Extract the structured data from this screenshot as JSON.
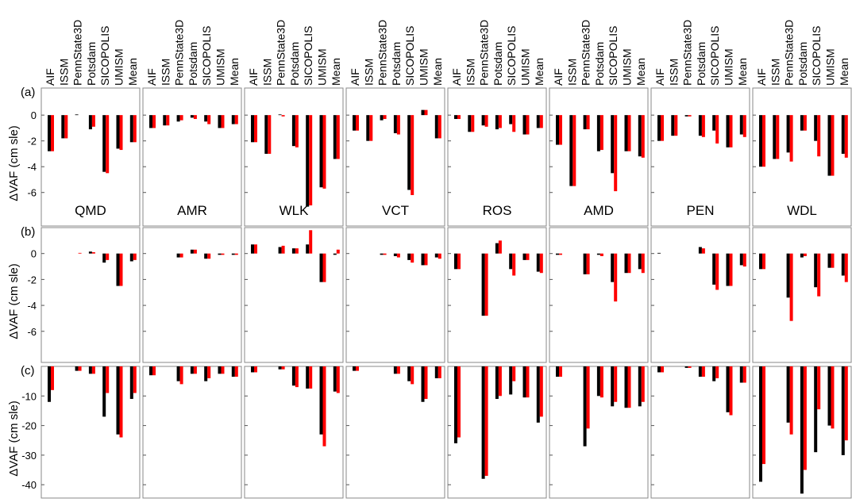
{
  "chart_data": {
    "type": "bar",
    "categories": [
      "AIF",
      "ISSM",
      "PennState3D",
      "Potsdam",
      "SICOPOLIS",
      "UMISM",
      "Mean"
    ],
    "regions": [
      "QMD",
      "AMR",
      "WLK",
      "VCT",
      "ROS",
      "AMD",
      "PEN",
      "WDL"
    ],
    "colors": [
      "#000000",
      "#ff0000"
    ],
    "rows": [
      {
        "label": "(a)",
        "ylabel": "ΔVAF (cm sle)",
        "ylim": [
          -8.6,
          2.1
        ],
        "yticks": [
          0,
          -2,
          -4,
          -6
        ],
        "panels": [
          [
            [
              -2.8,
              -1.8,
              0.05,
              -1.1,
              -4.4,
              -2.6,
              -2.1
            ],
            [
              -2.8,
              -1.8,
              0,
              -0.9,
              -4.5,
              -2.7,
              -2.1
            ]
          ],
          [
            [
              -1.0,
              -0.8,
              -0.5,
              -0.2,
              -0.5,
              -1.0,
              -0.7
            ],
            [
              -1.0,
              -0.8,
              -0.4,
              -0.3,
              -0.7,
              -1.0,
              -0.7
            ]
          ],
          [
            [
              -2.1,
              -3.0,
              0.05,
              -2.4,
              -7.1,
              -5.6,
              -3.4
            ],
            [
              -2.1,
              -3.0,
              -0.1,
              -2.5,
              -7.0,
              -5.7,
              -3.4
            ]
          ],
          [
            [
              -1.2,
              -2.0,
              -0.4,
              -1.4,
              -5.8,
              0.4,
              -1.8
            ],
            [
              -1.2,
              -2.0,
              -0.3,
              -1.5,
              -6.2,
              0.4,
              -1.8
            ]
          ],
          [
            [
              -0.3,
              -1.3,
              -0.8,
              -1.1,
              -0.7,
              -1.5,
              -1.0
            ],
            [
              -0.3,
              -1.3,
              -0.9,
              -1.0,
              -1.3,
              -1.5,
              -1.0
            ]
          ],
          [
            [
              -2.3,
              -5.5,
              -1.1,
              -2.8,
              -4.5,
              -2.8,
              -3.2
            ],
            [
              -2.3,
              -5.5,
              -1.1,
              -2.7,
              -5.9,
              -2.8,
              -3.3
            ]
          ],
          [
            [
              -2.0,
              -1.6,
              -0.1,
              -1.6,
              -1.2,
              -2.5,
              -1.5
            ],
            [
              -2.0,
              -1.6,
              -0.1,
              -1.7,
              -2.2,
              -2.5,
              -1.7
            ]
          ],
          [
            [
              -4.0,
              -3.4,
              -2.9,
              -1.2,
              -2.0,
              -4.7,
              -3.0
            ],
            [
              -4.0,
              -3.4,
              -3.6,
              -1.2,
              -3.2,
              -4.7,
              -3.3
            ]
          ]
        ]
      },
      {
        "label": "(b)",
        "ylabel": "ΔVAF (cm sle)",
        "ylim": [
          -8.4,
          2.0
        ],
        "yticks": [
          0,
          -2,
          -4,
          -6
        ],
        "panels": [
          [
            [
              0,
              0,
              0,
              0.15,
              -0.7,
              -2.5,
              -0.6
            ],
            [
              0,
              0,
              0.05,
              0.1,
              -0.5,
              -2.5,
              -0.5
            ]
          ],
          [
            [
              0,
              0,
              -0.3,
              0.3,
              -0.4,
              -0.1,
              -0.1
            ],
            [
              0,
              0,
              -0.3,
              0.3,
              -0.4,
              -0.1,
              -0.1
            ]
          ],
          [
            [
              0.7,
              0,
              0.5,
              0.4,
              0.7,
              -2.2,
              -0.1
            ],
            [
              0.7,
              0,
              0.6,
              0.4,
              1.8,
              -2.2,
              0.3
            ]
          ],
          [
            [
              0,
              0,
              -0.1,
              -0.2,
              -0.5,
              -0.9,
              -0.3
            ],
            [
              0,
              0,
              -0.1,
              -0.3,
              -0.7,
              -0.9,
              -0.4
            ]
          ],
          [
            [
              -1.2,
              0,
              -4.8,
              0.8,
              -1.2,
              -0.5,
              -1.4
            ],
            [
              -1.2,
              0,
              -4.8,
              1.0,
              -1.7,
              -0.5,
              -1.5
            ]
          ],
          [
            [
              -0.1,
              0,
              -1.6,
              -0.1,
              -2.2,
              -1.5,
              -1.2
            ],
            [
              -0.1,
              0,
              -1.6,
              -0.2,
              -3.7,
              -1.5,
              -1.5
            ]
          ],
          [
            [
              0.05,
              0,
              0,
              0.5,
              -2.4,
              -2.5,
              -0.9
            ],
            [
              0,
              0,
              0,
              0.4,
              -2.8,
              -2.5,
              -1.0
            ]
          ],
          [
            [
              -1.2,
              0,
              -3.4,
              -0.3,
              -2.6,
              -1.1,
              -1.7
            ],
            [
              -1.2,
              0,
              -5.2,
              -0.2,
              -3.3,
              -1.1,
              -2.2
            ]
          ]
        ]
      },
      {
        "label": "(c)",
        "ylabel": "ΔVAF (cm sle)",
        "ylim": [
          -44.5,
          0
        ],
        "yticks": [
          -10,
          -20,
          -30,
          -40
        ],
        "panels": [
          [
            [
              -12,
              0,
              -1.5,
              -2.5,
              -17,
              -23,
              -11
            ],
            [
              -8,
              0,
              -1.5,
              -2.5,
              -9,
              -24,
              -9
            ]
          ],
          [
            [
              -3,
              0,
              -5,
              -2.5,
              -5,
              -2.5,
              -3.5
            ],
            [
              -3,
              0,
              -6,
              -2.5,
              -4,
              -2.5,
              -3.5
            ]
          ],
          [
            [
              -2,
              0,
              -1,
              -6.5,
              -7.5,
              -23,
              -8.5
            ],
            [
              -2,
              0,
              -1,
              -7,
              -7.5,
              -27,
              -9
            ]
          ],
          [
            [
              -1.5,
              0,
              0,
              -2.5,
              -5,
              -12,
              -4
            ],
            [
              -1.5,
              0,
              0,
              -2.5,
              -6,
              -11,
              -4
            ]
          ],
          [
            [
              -26,
              0,
              -38,
              -11,
              -9.5,
              -10.5,
              -19
            ],
            [
              -24,
              0,
              -37,
              -10,
              -5,
              -10.5,
              -17
            ]
          ],
          [
            [
              -3.5,
              0,
              -27,
              -10,
              -13.5,
              -14,
              -13.5
            ],
            [
              -3.5,
              0,
              -21,
              -10.5,
              -12,
              -14,
              -12
            ]
          ],
          [
            [
              -2,
              0,
              -0.5,
              -3.5,
              -5,
              -15.5,
              -5.5
            ],
            [
              -2,
              0,
              -0.5,
              -3.5,
              -4,
              -16.5,
              -5.5
            ]
          ],
          [
            [
              -39,
              0,
              -19,
              -43,
              -29,
              -20,
              -30
            ],
            [
              -33,
              0,
              -23,
              -35,
              -14.5,
              -21,
              -25
            ]
          ]
        ]
      }
    ]
  }
}
